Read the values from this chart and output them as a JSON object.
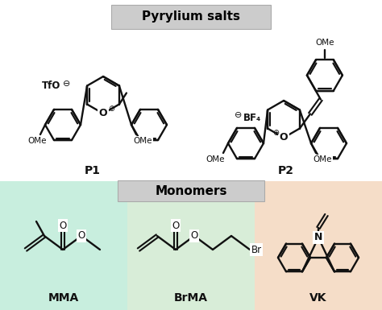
{
  "title_pyrylium": "Pyrylium salts",
  "title_monomers": "Monomers",
  "label_p1": "P1",
  "label_p2": "P2",
  "label_mma": "MMA",
  "label_brma": "BrMA",
  "label_vk": "VK",
  "bg_left": "#c8eede",
  "bg_center": "#d8edd8",
  "bg_right": "#f5ddc8",
  "line_color": "#111111",
  "line_width": 1.7,
  "figsize": [
    4.74,
    3.85
  ],
  "dpi": 100
}
